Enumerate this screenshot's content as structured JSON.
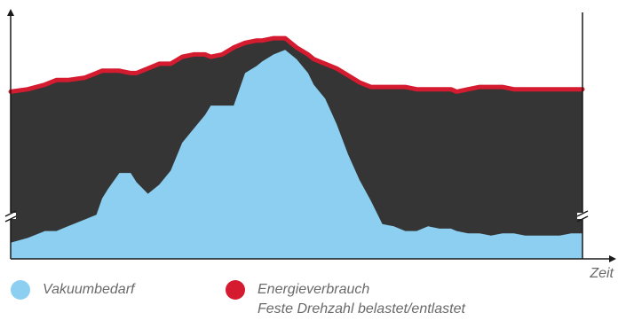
{
  "chart_data": {
    "type": "area",
    "title": "",
    "xlabel": "Zeit",
    "ylabel": "",
    "xlim": [
      0,
      100
    ],
    "ylim": [
      0,
      100
    ],
    "grid": false,
    "legend_position": "bottom",
    "x": [
      0,
      3,
      6,
      8,
      10,
      13,
      15,
      16,
      17,
      19,
      21,
      22,
      24,
      26,
      28,
      30,
      32,
      34,
      35,
      37,
      39,
      41,
      43,
      44,
      46,
      48,
      50,
      52,
      53,
      55,
      57,
      59,
      61,
      63,
      65,
      67,
      69,
      71,
      73,
      75,
      77,
      78,
      80,
      82,
      84,
      86,
      88,
      90,
      92,
      94,
      96,
      98,
      100
    ],
    "series": [
      {
        "name": "Vakuumbedarf",
        "kind": "area",
        "color": "#8ccff1",
        "values": [
          7,
          9,
          12,
          12,
          14,
          17,
          19,
          26,
          30,
          37,
          37,
          33,
          28,
          32,
          38,
          50,
          56,
          62,
          66,
          66,
          66,
          80,
          83,
          85,
          88,
          90,
          86,
          80,
          75,
          69,
          58,
          45,
          34,
          25,
          15,
          14,
          12,
          12,
          14,
          13,
          13,
          12,
          11,
          11,
          10,
          11,
          11,
          10,
          10,
          10,
          10,
          11,
          11
        ]
      },
      {
        "name": "Energieverbrauch",
        "subtitle": "Feste Drehzahl belastet/entlastet",
        "kind": "line",
        "color": "#d41b2f",
        "values": [
          72,
          73,
          75,
          77,
          77,
          78,
          80,
          81,
          81,
          81,
          80,
          80,
          82,
          84,
          84,
          87,
          88,
          88,
          87,
          88,
          91,
          93,
          94,
          94,
          95,
          95,
          91,
          88,
          86,
          84,
          82,
          79,
          76,
          74,
          74,
          74,
          74,
          73,
          73,
          73,
          73,
          72,
          73,
          74,
          74,
          74,
          73,
          73,
          73,
          73,
          73,
          73,
          73
        ]
      }
    ],
    "axis_break": true
  }
}
